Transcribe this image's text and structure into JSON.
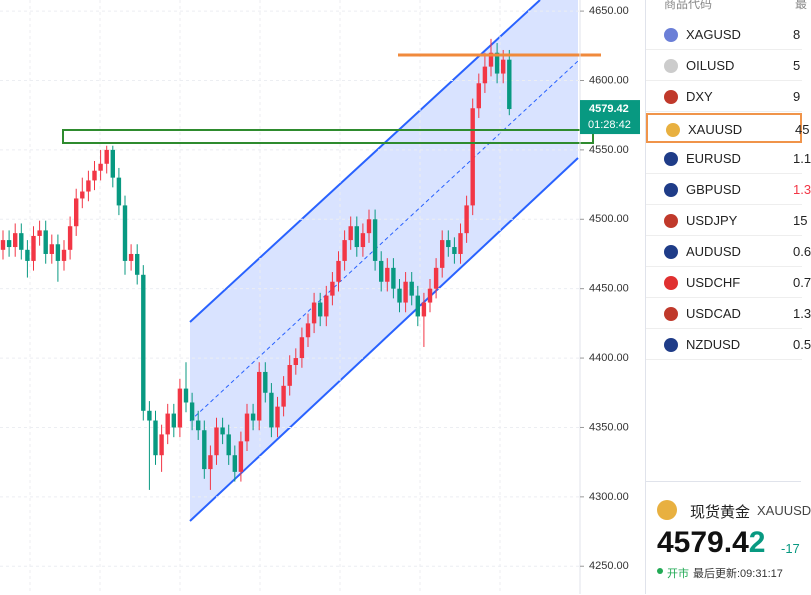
{
  "chart_data": {
    "type": "candlestick",
    "up_color": "#f23645",
    "down_color": "#089981",
    "ylim": [
      4230,
      4658
    ],
    "yticks": [
      {
        "value": 4650,
        "label": "4650.00"
      },
      {
        "value": 4600,
        "label": "4600.00"
      },
      {
        "value": 4550,
        "label": "4550.00"
      },
      {
        "value": 4500,
        "label": "4500.00"
      },
      {
        "value": 4450,
        "label": "4450.00"
      },
      {
        "value": 4400,
        "label": "4400.00"
      },
      {
        "value": 4350,
        "label": "4350.00"
      },
      {
        "value": 4300,
        "label": "4300.00"
      },
      {
        "value": 4250,
        "label": "4250.00"
      }
    ],
    "grid": true,
    "current_price": 4579.42,
    "countdown": "01:28:42",
    "candles": [
      [
        4478,
        4492,
        4471,
        4485
      ],
      [
        4485,
        4492,
        4473,
        4480
      ],
      [
        4480,
        4497,
        4473,
        4490
      ],
      [
        4490,
        4497,
        4471,
        4478
      ],
      [
        4478,
        4485,
        4458,
        4470
      ],
      [
        4470,
        4495,
        4463,
        4488
      ],
      [
        4488,
        4499,
        4481,
        4492
      ],
      [
        4492,
        4499,
        4468,
        4475
      ],
      [
        4475,
        4489,
        4468,
        4482
      ],
      [
        4482,
        4489,
        4455,
        4470
      ],
      [
        4470,
        4485,
        4463,
        4478
      ],
      [
        4478,
        4502,
        4471,
        4495
      ],
      [
        4495,
        4522,
        4488,
        4515
      ],
      [
        4515,
        4530,
        4508,
        4520
      ],
      [
        4520,
        4535,
        4513,
        4528
      ],
      [
        4528,
        4542,
        4521,
        4535
      ],
      [
        4535,
        4550,
        4528,
        4540
      ],
      [
        4540,
        4553,
        4533,
        4550
      ],
      [
        4550,
        4553,
        4523,
        4530
      ],
      [
        4530,
        4537,
        4503,
        4510
      ],
      [
        4510,
        4517,
        4460,
        4470
      ],
      [
        4470,
        4482,
        4463,
        4475
      ],
      [
        4475,
        4482,
        4453,
        4460
      ],
      [
        4460,
        4467,
        4355,
        4362
      ],
      [
        4362,
        4369,
        4305,
        4355
      ],
      [
        4355,
        4362,
        4323,
        4330
      ],
      [
        4330,
        4352,
        4318,
        4345
      ],
      [
        4345,
        4367,
        4338,
        4360
      ],
      [
        4360,
        4367,
        4343,
        4350
      ],
      [
        4350,
        4385,
        4343,
        4378
      ],
      [
        4378,
        4397,
        4361,
        4368
      ],
      [
        4368,
        4375,
        4348,
        4355
      ],
      [
        4355,
        4362,
        4341,
        4348
      ],
      [
        4348,
        4355,
        4313,
        4320
      ],
      [
        4320,
        4337,
        4305,
        4330
      ],
      [
        4330,
        4357,
        4323,
        4350
      ],
      [
        4350,
        4357,
        4338,
        4345
      ],
      [
        4345,
        4352,
        4323,
        4330
      ],
      [
        4330,
        4337,
        4311,
        4318
      ],
      [
        4318,
        4347,
        4311,
        4340
      ],
      [
        4340,
        4367,
        4333,
        4360
      ],
      [
        4360,
        4367,
        4348,
        4355
      ],
      [
        4355,
        4397,
        4348,
        4390
      ],
      [
        4390,
        4397,
        4368,
        4375
      ],
      [
        4375,
        4382,
        4343,
        4350
      ],
      [
        4350,
        4372,
        4343,
        4365
      ],
      [
        4365,
        4387,
        4358,
        4380
      ],
      [
        4380,
        4402,
        4373,
        4395
      ],
      [
        4395,
        4407,
        4388,
        4400
      ],
      [
        4400,
        4422,
        4393,
        4415
      ],
      [
        4415,
        4432,
        4408,
        4425
      ],
      [
        4425,
        4447,
        4418,
        4440
      ],
      [
        4440,
        4447,
        4423,
        4430
      ],
      [
        4430,
        4452,
        4423,
        4445
      ],
      [
        4445,
        4462,
        4438,
        4455
      ],
      [
        4455,
        4477,
        4448,
        4470
      ],
      [
        4470,
        4492,
        4463,
        4485
      ],
      [
        4485,
        4502,
        4478,
        4495
      ],
      [
        4495,
        4502,
        4473,
        4480
      ],
      [
        4480,
        4497,
        4473,
        4490
      ],
      [
        4490,
        4507,
        4483,
        4500
      ],
      [
        4500,
        4507,
        4463,
        4470
      ],
      [
        4470,
        4477,
        4448,
        4455
      ],
      [
        4455,
        4472,
        4448,
        4465
      ],
      [
        4465,
        4472,
        4443,
        4450
      ],
      [
        4450,
        4457,
        4433,
        4440
      ],
      [
        4440,
        4462,
        4433,
        4455
      ],
      [
        4455,
        4462,
        4438,
        4445
      ],
      [
        4445,
        4452,
        4423,
        4430
      ],
      [
        4430,
        4447,
        4408,
        4440
      ],
      [
        4440,
        4457,
        4433,
        4450
      ],
      [
        4450,
        4472,
        4443,
        4465
      ],
      [
        4465,
        4492,
        4458,
        4485
      ],
      [
        4485,
        4492,
        4473,
        4480
      ],
      [
        4480,
        4487,
        4468,
        4475
      ],
      [
        4475,
        4497,
        4468,
        4490
      ],
      [
        4490,
        4517,
        4483,
        4510
      ],
      [
        4510,
        4587,
        4503,
        4580
      ],
      [
        4580,
        4605,
        4573,
        4598
      ],
      [
        4598,
        4620,
        4591,
        4610
      ],
      [
        4610,
        4630,
        4603,
        4620
      ],
      [
        4620,
        4627,
        4598,
        4605
      ],
      [
        4605,
        4622,
        4598,
        4615
      ],
      [
        4615,
        4622,
        4575,
        4579.42
      ]
    ]
  },
  "watchlist": {
    "header": "商品代码",
    "header2": "最",
    "rows": [
      {
        "symbol": "XAGUSD",
        "price": "8"
      },
      {
        "symbol": "OILUSD",
        "price": "5"
      },
      {
        "symbol": "DXY",
        "price": "9"
      },
      {
        "symbol": "XAUUSD",
        "price": "45"
      },
      {
        "symbol": "EURUSD",
        "price": "1.1"
      },
      {
        "symbol": "GBPUSD",
        "price": "1.3"
      },
      {
        "symbol": "USDJPY",
        "price": "15"
      },
      {
        "symbol": "AUDUSD",
        "price": "0.6"
      },
      {
        "symbol": "USDCHF",
        "price": "0.7"
      },
      {
        "symbol": "USDCAD",
        "price": "1.3"
      },
      {
        "symbol": "NZDUSD",
        "price": "0.5"
      }
    ]
  },
  "quote": {
    "name": "现货黄金",
    "symbol": "XAUUSD",
    "price_main": "4579.4",
    "price_last": "2",
    "change": "-17",
    "status": "开市",
    "updated": "最后更新:09:31:17"
  }
}
